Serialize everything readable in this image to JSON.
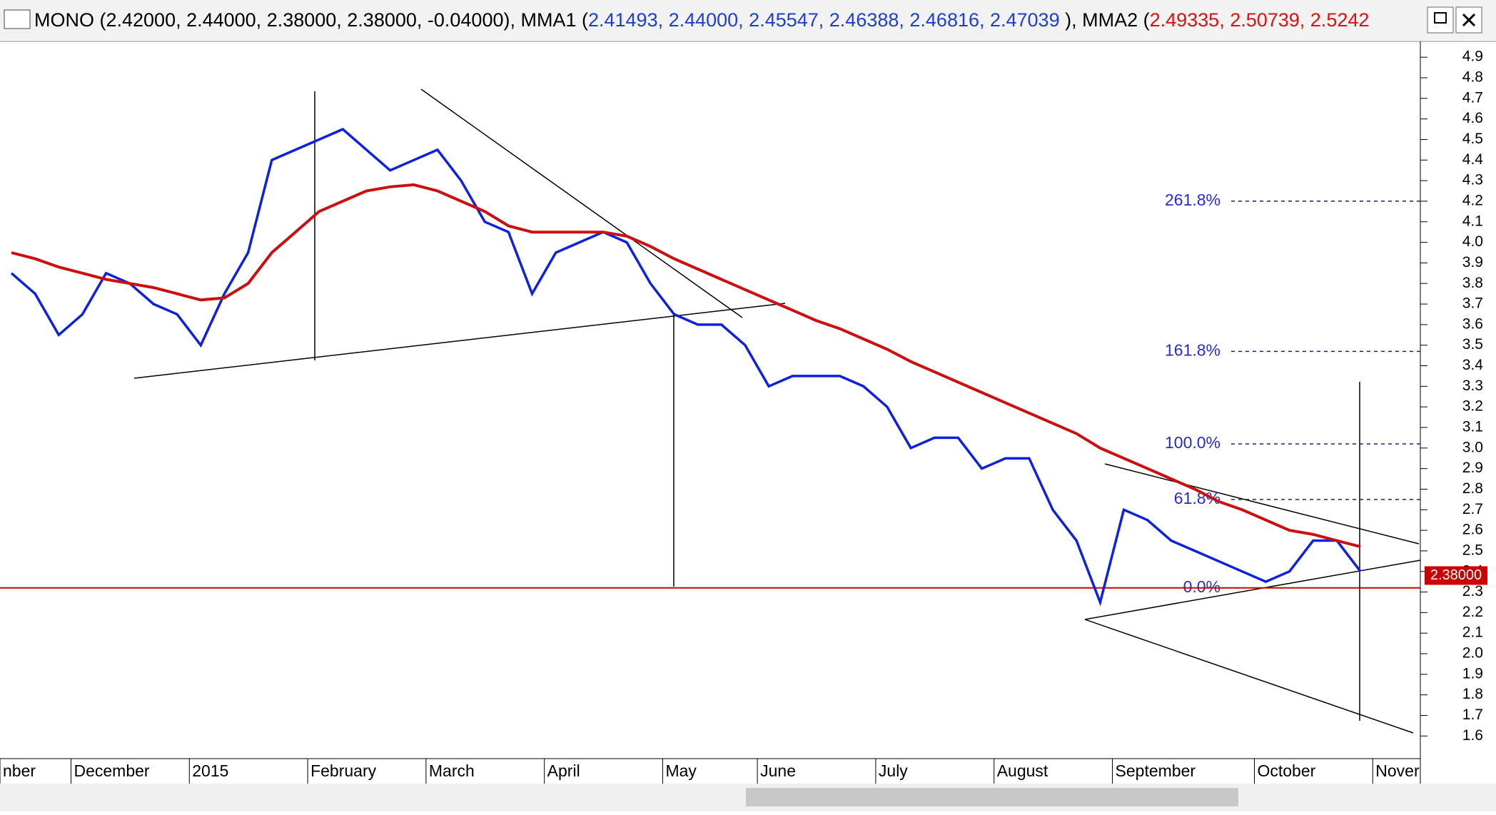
{
  "header": {
    "title_segments": [
      {
        "text": "MONO (2.42000, 2.44000, 2.38000, 2.38000, -0.04000), MMA1 (",
        "color": "#000000"
      },
      {
        "text": "2.41493, 2.44000, 2.45547, 2.46388, 2.46816, 2.47039",
        "color": "#1f3fd0"
      },
      {
        "text": " ), MMA2 (",
        "color": "#000000"
      },
      {
        "text": "2.49335, 2.50739, 2.5242",
        "color": "#e01010"
      }
    ]
  },
  "chart_data": {
    "type": "line",
    "categories": [
      "nber",
      null,
      null,
      "December",
      null,
      null,
      null,
      null,
      "2015",
      null,
      null,
      null,
      null,
      "February",
      null,
      null,
      null,
      null,
      "March",
      null,
      null,
      null,
      null,
      "April",
      null,
      null,
      null,
      null,
      "May",
      null,
      null,
      null,
      "June",
      null,
      null,
      null,
      null,
      "July",
      null,
      null,
      null,
      null,
      "August",
      null,
      null,
      null,
      null,
      "September",
      null,
      null,
      null,
      null,
      null,
      "October",
      null,
      null,
      null,
      null,
      "Nover",
      null
    ],
    "series": [
      {
        "name": "MONO",
        "color": "#1020e0",
        "values": [
          3.85,
          3.75,
          3.55,
          3.65,
          3.85,
          3.8,
          3.7,
          3.65,
          3.5,
          3.75,
          3.95,
          4.4,
          4.45,
          4.5,
          4.55,
          4.45,
          4.35,
          4.4,
          4.45,
          4.3,
          4.1,
          4.05,
          3.75,
          3.95,
          4.0,
          4.05,
          4.0,
          3.8,
          3.65,
          3.6,
          3.6,
          3.5,
          3.3,
          3.35,
          3.35,
          3.35,
          3.3,
          3.2,
          3.0,
          3.05,
          3.05,
          2.9,
          2.95,
          2.95,
          2.7,
          2.55,
          2.25,
          2.7,
          2.65,
          2.55,
          2.5,
          2.45,
          2.4,
          2.35,
          2.4,
          2.55,
          2.55,
          2.4,
          null,
          null
        ]
      },
      {
        "name": "MMA2",
        "color": "#cc1010",
        "values": [
          3.95,
          3.92,
          3.88,
          3.85,
          3.82,
          3.8,
          3.78,
          3.75,
          3.72,
          3.73,
          3.8,
          3.95,
          4.05,
          4.15,
          4.2,
          4.25,
          4.27,
          4.28,
          4.25,
          4.2,
          4.15,
          4.08,
          4.05,
          4.05,
          4.05,
          4.05,
          4.03,
          3.98,
          3.92,
          3.87,
          3.82,
          3.77,
          3.72,
          3.67,
          3.62,
          3.58,
          3.53,
          3.48,
          3.42,
          3.37,
          3.32,
          3.27,
          3.22,
          3.17,
          3.12,
          3.07,
          3.0,
          2.95,
          2.9,
          2.85,
          2.8,
          2.74,
          2.7,
          2.65,
          2.6,
          2.58,
          2.55,
          2.52,
          null,
          null
        ]
      }
    ],
    "ylim": [
      1.49,
      4.97
    ],
    "yticks": [
      1.6,
      1.7,
      1.8,
      1.9,
      {
        "value": 2,
        "label": "2.0"
      },
      2.1,
      2.2,
      2.3,
      2.4,
      2.5,
      2.6,
      2.7,
      2.8,
      2.9,
      {
        "value": 3,
        "label": "3.0"
      },
      3.1,
      3.2,
      3.3,
      3.4,
      3.5,
      3.6,
      3.7,
      3.8,
      3.9,
      {
        "value": 4,
        "label": "4.0"
      },
      4.1,
      4.2,
      4.3,
      4.4,
      4.5,
      4.6,
      4.7,
      4.8,
      4.9
    ],
    "fib_levels": [
      {
        "value": 4.2,
        "label": "261.8%"
      },
      {
        "value": 3.47,
        "label": "161.8%"
      },
      {
        "value": 3.02,
        "label": "100.0%"
      },
      {
        "value": 2.75,
        "label": "61.8%"
      },
      {
        "value": 2.32,
        "label": "0.0%"
      }
    ],
    "support_line": {
      "value": 2.32,
      "color": "#cc0000"
    },
    "last_price": {
      "value": 2.38,
      "label": "2.38000",
      "color": "#cc0000"
    }
  }
}
